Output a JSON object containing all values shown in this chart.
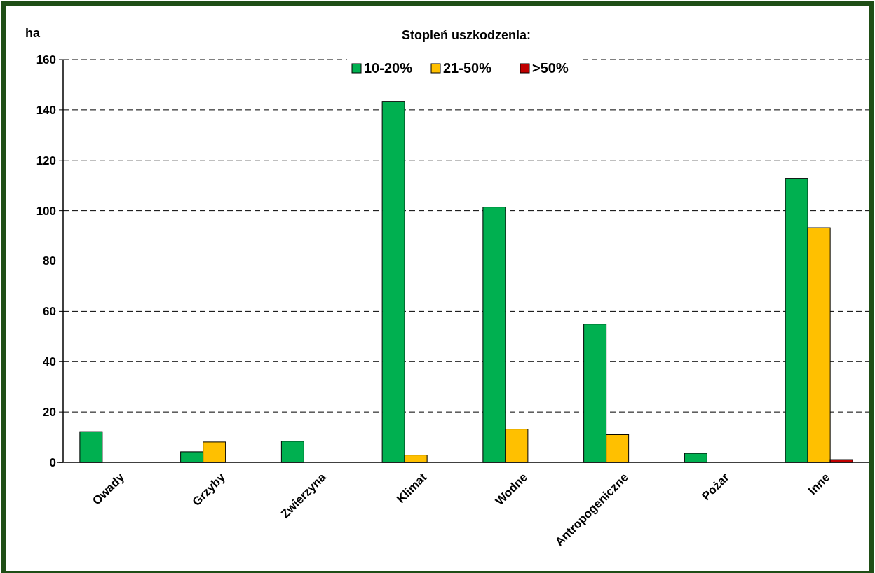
{
  "chart_data": {
    "type": "bar",
    "ylabel": "ha",
    "legend_title": "Stopień uszkodzenia:",
    "legend": "top",
    "grid": "y",
    "ylim": [
      0,
      160
    ],
    "yticks": [
      0,
      20,
      40,
      60,
      80,
      100,
      120,
      140,
      160
    ],
    "categories": [
      "Owady",
      "Grzyby",
      "Zwierzyna",
      "Klimat",
      "Wodne",
      "Antropogeniczne",
      "Pożar",
      "Inne"
    ],
    "series": [
      {
        "name": "10-20%",
        "color": "#00b050",
        "values": [
          12.2,
          4.2,
          8.4,
          143.4,
          101.4,
          54.9,
          3.6,
          112.8
        ]
      },
      {
        "name": "21-50%",
        "color": "#ffc000",
        "values": [
          null,
          8.1,
          null,
          2.9,
          13.2,
          11,
          null,
          93.2
        ]
      },
      {
        "name": ">50%",
        "color": "#c00000",
        "values": [
          null,
          null,
          null,
          null,
          null,
          null,
          null,
          1.1
        ]
      }
    ]
  }
}
